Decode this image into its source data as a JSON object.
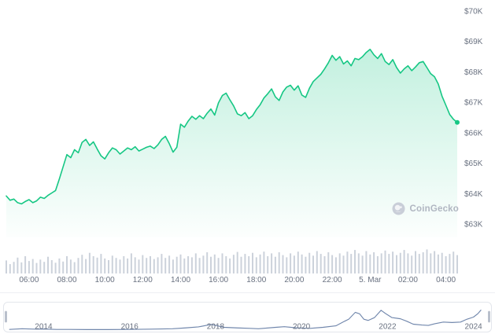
{
  "watermark": {
    "label": "CoinGecko"
  },
  "colors": {
    "line": "#16c784",
    "fill_top": "rgba(22,199,132,0.26)",
    "fill_bottom": "rgba(22,199,132,0.01)",
    "volume": "#ccd2db",
    "axis_text": "#697180",
    "mini_line": "#7187ac",
    "mini_border": "#e3e6ec",
    "watermark_gray": "#b0b6c1"
  },
  "chart_data": [
    {
      "type": "area",
      "name": "btc-price-24h",
      "title": "",
      "xlabel": "",
      "ylabel": "",
      "x_start": 4.8,
      "x_step": 0.2,
      "xlim": [
        4.8,
        28.6
      ],
      "ylim": [
        63,
        70
      ],
      "line_color": "#16c784",
      "values": [
        63.92,
        63.78,
        63.82,
        63.7,
        63.66,
        63.74,
        63.8,
        63.7,
        63.76,
        63.88,
        63.84,
        63.94,
        64.02,
        64.1,
        64.48,
        64.88,
        65.28,
        65.18,
        65.44,
        65.34,
        65.68,
        65.78,
        65.58,
        65.7,
        65.46,
        65.24,
        65.14,
        65.34,
        65.5,
        65.44,
        65.3,
        65.4,
        65.5,
        65.44,
        65.54,
        65.4,
        65.46,
        65.52,
        65.56,
        65.48,
        65.6,
        65.78,
        65.88,
        65.64,
        65.36,
        65.52,
        66.28,
        66.18,
        66.38,
        66.54,
        66.44,
        66.56,
        66.46,
        66.64,
        66.78,
        66.58,
        66.98,
        67.22,
        67.3,
        67.08,
        66.88,
        66.62,
        66.56,
        66.66,
        66.46,
        66.56,
        66.76,
        66.92,
        67.14,
        67.28,
        67.44,
        67.18,
        67.06,
        67.34,
        67.5,
        67.56,
        67.4,
        67.54,
        67.24,
        67.16,
        67.46,
        67.68,
        67.8,
        67.92,
        68.1,
        68.3,
        68.54,
        68.38,
        68.5,
        68.26,
        68.36,
        68.2,
        68.44,
        68.4,
        68.5,
        68.64,
        68.74,
        68.56,
        68.44,
        68.6,
        68.34,
        68.24,
        68.4,
        68.14,
        67.96,
        68.1,
        68.2,
        68.04,
        68.16,
        68.3,
        68.34,
        68.14,
        67.94,
        67.84,
        67.6,
        67.2,
        66.9,
        66.6,
        66.44,
        66.34
      ],
      "y_ticks": [
        {
          "v": 70,
          "label": "$70K"
        },
        {
          "v": 69,
          "label": "$69K"
        },
        {
          "v": 68,
          "label": "$68K"
        },
        {
          "v": 67,
          "label": "$67K"
        },
        {
          "v": 66,
          "label": "$66K"
        },
        {
          "v": 65,
          "label": "$65K"
        },
        {
          "v": 64,
          "label": "$64K"
        },
        {
          "v": 63,
          "label": "$63K"
        }
      ],
      "x_ticks": [
        {
          "v": 6,
          "label": "06:00"
        },
        {
          "v": 8,
          "label": "08:00"
        },
        {
          "v": 10,
          "label": "10:00"
        },
        {
          "v": 12,
          "label": "12:00"
        },
        {
          "v": 14,
          "label": "14:00"
        },
        {
          "v": 16,
          "label": "16:00"
        },
        {
          "v": 18,
          "label": "18:00"
        },
        {
          "v": 20,
          "label": "20:00"
        },
        {
          "v": 22,
          "label": "22:00"
        },
        {
          "v": 24,
          "label": "5. Mar"
        },
        {
          "v": 26,
          "label": "02:00"
        },
        {
          "v": 28,
          "label": "04:00"
        }
      ]
    },
    {
      "type": "bar",
      "name": "volume-24h",
      "bar_color": "#ccd2db",
      "values": [
        0.35,
        0.22,
        0.3,
        0.45,
        0.28,
        0.5,
        0.33,
        0.4,
        0.26,
        0.38,
        0.3,
        0.48,
        0.36,
        0.27,
        0.42,
        0.31,
        0.5,
        0.38,
        0.29,
        0.44,
        0.55,
        0.4,
        0.62,
        0.5,
        0.45,
        0.58,
        0.42,
        0.36,
        0.52,
        0.44,
        0.38,
        0.5,
        0.42,
        0.6,
        0.46,
        0.38,
        0.54,
        0.44,
        0.5,
        0.4,
        0.46,
        0.58,
        0.44,
        0.52,
        0.38,
        0.48,
        0.56,
        0.42,
        0.5,
        0.46,
        0.6,
        0.44,
        0.52,
        0.64,
        0.48,
        0.56,
        0.44,
        0.6,
        0.5,
        0.42,
        0.55,
        0.65,
        0.48,
        0.58,
        0.5,
        0.62,
        0.46,
        0.56,
        0.66,
        0.5,
        0.6,
        0.48,
        0.64,
        0.54,
        0.46,
        0.6,
        0.52,
        0.66,
        0.56,
        0.48,
        0.62,
        0.52,
        0.68,
        0.58,
        0.5,
        0.64,
        0.54,
        0.46,
        0.6,
        0.52,
        0.66,
        0.58,
        0.72,
        0.6,
        0.52,
        0.68,
        0.56,
        0.64,
        0.5,
        0.6,
        0.7,
        0.58,
        0.66,
        0.54,
        0.62,
        0.72,
        0.6,
        0.52,
        0.68,
        0.58,
        0.64,
        0.74,
        0.6,
        0.68,
        0.56,
        0.62,
        0.5,
        0.58,
        0.66,
        0.54
      ]
    },
    {
      "type": "line",
      "name": "history-navigator-2013-2024",
      "line_color": "#7187ac",
      "x": [
        2013.2,
        2013.5,
        2013.8,
        2014.0,
        2014.3,
        2014.6,
        2015.0,
        2015.5,
        2016.0,
        2016.5,
        2017.0,
        2017.3,
        2017.6,
        2017.9,
        2018.0,
        2018.2,
        2018.5,
        2018.8,
        2019.0,
        2019.4,
        2019.6,
        2019.9,
        2020.2,
        2020.5,
        2020.8,
        2021.0,
        2021.1,
        2021.25,
        2021.35,
        2021.45,
        2021.55,
        2021.7,
        2021.85,
        2021.95,
        2022.1,
        2022.3,
        2022.45,
        2022.6,
        2022.8,
        2022.95,
        2023.1,
        2023.3,
        2023.5,
        2023.7,
        2023.85,
        2024.0,
        2024.1,
        2024.18
      ],
      "values": [
        0.03,
        0.06,
        0.04,
        0.05,
        0.03,
        0.03,
        0.02,
        0.02,
        0.03,
        0.04,
        0.06,
        0.1,
        0.15,
        0.27,
        0.22,
        0.13,
        0.1,
        0.08,
        0.06,
        0.13,
        0.16,
        0.1,
        0.08,
        0.13,
        0.2,
        0.42,
        0.52,
        0.85,
        0.78,
        0.52,
        0.46,
        0.6,
        0.95,
        0.8,
        0.6,
        0.54,
        0.42,
        0.28,
        0.24,
        0.22,
        0.3,
        0.38,
        0.36,
        0.38,
        0.52,
        0.62,
        0.78,
        0.97
      ],
      "x_ticks": [
        {
          "v": 2014,
          "label": "2014"
        },
        {
          "v": 2016,
          "label": "2016"
        },
        {
          "v": 2018,
          "label": "2018"
        },
        {
          "v": 2020,
          "label": "2020"
        },
        {
          "v": 2022,
          "label": "2022"
        },
        {
          "v": 2024,
          "label": "2024"
        }
      ]
    }
  ]
}
